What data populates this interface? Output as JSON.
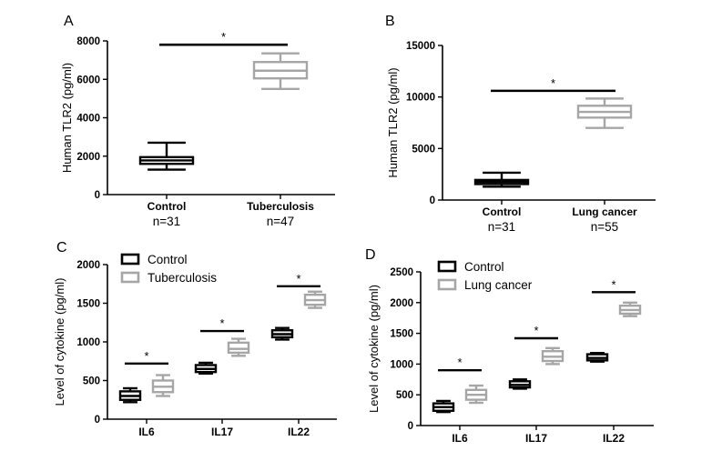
{
  "colors": {
    "black": "#000000",
    "gray": "#a6a6a6",
    "white": "#ffffff"
  },
  "chart_data": [
    {
      "type": "boxplot",
      "panel": "A",
      "ylabel": "Human TLR2 (pg/ml)",
      "ylim": [
        0,
        8000
      ],
      "yticks": [
        0,
        2000,
        4000,
        6000,
        8000
      ],
      "categories": [
        "Control",
        "Tuberculosis"
      ],
      "n_labels": [
        "n=31",
        "n=47"
      ],
      "boxes": [
        {
          "group": "Control",
          "color": "black",
          "min": 1300,
          "q1": 1600,
          "median": 1780,
          "q3": 1950,
          "max": 2700
        },
        {
          "group": "Tuberculosis",
          "color": "gray",
          "min": 5500,
          "q1": 6050,
          "median": 6450,
          "q3": 6900,
          "max": 7350
        }
      ],
      "significance": [
        {
          "from": 0,
          "to": 1,
          "y": 7800,
          "label": "*"
        }
      ]
    },
    {
      "type": "boxplot",
      "panel": "B",
      "ylabel": "Human TLR2 (pg/ml)",
      "ylim": [
        0,
        15000
      ],
      "yticks": [
        0,
        5000,
        10000,
        15000
      ],
      "categories": [
        "Control",
        "Lung cancer"
      ],
      "n_labels": [
        "n=31",
        "n=55"
      ],
      "boxes": [
        {
          "group": "Control",
          "color": "black",
          "min": 1300,
          "q1": 1550,
          "median": 1750,
          "q3": 1950,
          "max": 2650
        },
        {
          "group": "Lung cancer",
          "color": "gray",
          "min": 7000,
          "q1": 8000,
          "median": 8550,
          "q3": 9150,
          "max": 9850
        }
      ],
      "significance": [
        {
          "from": 0,
          "to": 1,
          "y": 10600,
          "label": "*"
        }
      ]
    },
    {
      "type": "boxplot",
      "panel": "C",
      "ylabel": "Level of cytokine (pg/ml)",
      "ylim": [
        0,
        2000
      ],
      "yticks": [
        0,
        500,
        1000,
        1500,
        2000
      ],
      "categories": [
        "IL6",
        "IL17",
        "IL22"
      ],
      "legend": [
        {
          "name": "Control",
          "color": "black"
        },
        {
          "name": "Tuberculosis",
          "color": "gray"
        }
      ],
      "series": [
        {
          "name": "Control",
          "color": "black",
          "boxes": [
            {
              "min": 220,
              "q1": 250,
              "median": 300,
              "q3": 360,
              "max": 400
            },
            {
              "min": 590,
              "q1": 610,
              "median": 650,
              "q3": 700,
              "max": 730
            },
            {
              "min": 1030,
              "q1": 1060,
              "median": 1100,
              "q3": 1150,
              "max": 1180
            }
          ]
        },
        {
          "name": "Tuberculosis",
          "color": "gray",
          "boxes": [
            {
              "min": 300,
              "q1": 350,
              "median": 420,
              "q3": 500,
              "max": 570
            },
            {
              "min": 820,
              "q1": 860,
              "median": 910,
              "q3": 990,
              "max": 1040
            },
            {
              "min": 1440,
              "q1": 1480,
              "median": 1540,
              "q3": 1610,
              "max": 1650
            }
          ]
        }
      ],
      "significance": [
        {
          "category": "IL6",
          "y": 720,
          "label": "*"
        },
        {
          "category": "IL17",
          "y": 1140,
          "label": "*"
        },
        {
          "category": "IL22",
          "y": 1720,
          "label": "*"
        }
      ]
    },
    {
      "type": "boxplot",
      "panel": "D",
      "ylabel": "Level of cytokine (pg/ml)",
      "ylim": [
        0,
        2500
      ],
      "yticks": [
        0,
        500,
        1000,
        1500,
        2000,
        2500
      ],
      "categories": [
        "IL6",
        "IL17",
        "IL22"
      ],
      "legend": [
        {
          "name": "Control",
          "color": "black"
        },
        {
          "name": "Lung cancer",
          "color": "gray"
        }
      ],
      "series": [
        {
          "name": "Control",
          "color": "black",
          "boxes": [
            {
              "min": 220,
              "q1": 240,
              "median": 300,
              "q3": 360,
              "max": 400
            },
            {
              "min": 600,
              "q1": 620,
              "median": 660,
              "q3": 720,
              "max": 750
            },
            {
              "min": 1040,
              "q1": 1060,
              "median": 1100,
              "q3": 1160,
              "max": 1180
            }
          ]
        },
        {
          "name": "Lung cancer",
          "color": "gray",
          "boxes": [
            {
              "min": 370,
              "q1": 420,
              "median": 500,
              "q3": 580,
              "max": 650
            },
            {
              "min": 1000,
              "q1": 1050,
              "median": 1120,
              "q3": 1210,
              "max": 1260
            },
            {
              "min": 1780,
              "q1": 1820,
              "median": 1880,
              "q3": 1950,
              "max": 2000
            }
          ]
        }
      ],
      "significance": [
        {
          "category": "IL6",
          "y": 900,
          "label": "*"
        },
        {
          "category": "IL17",
          "y": 1420,
          "label": "*"
        },
        {
          "category": "IL22",
          "y": 2170,
          "label": "*"
        }
      ]
    }
  ]
}
